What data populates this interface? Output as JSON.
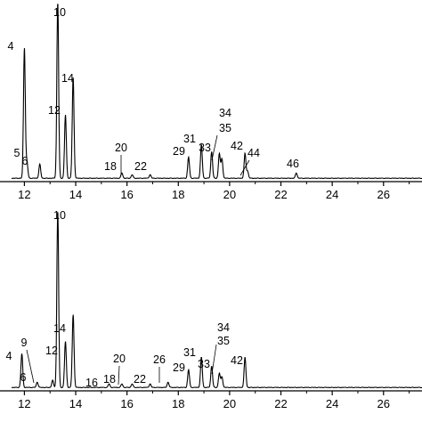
{
  "chart_data": [
    {
      "type": "line",
      "xlim": [
        11.5,
        27.5
      ],
      "xticks": [
        "12",
        "14",
        "16",
        "18",
        "20",
        "22",
        "24",
        "26"
      ],
      "tick_values": [
        12,
        14,
        16,
        18,
        20,
        22,
        24,
        26
      ],
      "ylim": [
        0,
        100
      ],
      "peaks": [
        {
          "label": "4",
          "x": 12.0,
          "height": 74
        },
        {
          "label": "5",
          "x": 12.1,
          "height": 9
        },
        {
          "label": "6",
          "x": 12.6,
          "height": 8
        },
        {
          "label": "10",
          "x": 13.3,
          "height": 100
        },
        {
          "label": "12",
          "x": 13.6,
          "height": 36
        },
        {
          "label": "14",
          "x": 13.9,
          "height": 57
        },
        {
          "label": "18",
          "x": 15.8,
          "height": 3
        },
        {
          "label": "20",
          "x": 16.2,
          "height": 2
        },
        {
          "label": "22",
          "x": 16.9,
          "height": 2
        },
        {
          "label": "29",
          "x": 18.4,
          "height": 12
        },
        {
          "label": "31",
          "x": 18.9,
          "height": 19
        },
        {
          "label": "33",
          "x": 19.3,
          "height": 15
        },
        {
          "label": "34",
          "x": 19.6,
          "height": 14
        },
        {
          "label": "35",
          "x": 19.7,
          "height": 11
        },
        {
          "label": "42",
          "x": 20.6,
          "height": 14
        },
        {
          "label": "44",
          "x": 20.7,
          "height": 4
        },
        {
          "label": "46",
          "x": 22.6,
          "height": 3
        }
      ]
    },
    {
      "type": "line",
      "xlim": [
        11.5,
        27.5
      ],
      "xticks": [
        "12",
        "14",
        "16",
        "18",
        "20",
        "22",
        "24",
        "26"
      ],
      "tick_values": [
        12,
        14,
        16,
        18,
        20,
        22,
        24,
        26
      ],
      "ylim": [
        0,
        100
      ],
      "peaks": [
        {
          "label": "4",
          "x": 11.9,
          "height": 19
        },
        {
          "label": "6",
          "x": 12.5,
          "height": 3
        },
        {
          "label": "9",
          "x": 13.1,
          "height": 4
        },
        {
          "label": "10",
          "x": 13.3,
          "height": 100
        },
        {
          "label": "12",
          "x": 13.6,
          "height": 26
        },
        {
          "label": "14",
          "x": 13.9,
          "height": 41
        },
        {
          "label": "16",
          "x": 15.3,
          "height": 2
        },
        {
          "label": "18",
          "x": 15.8,
          "height": 2
        },
        {
          "label": "20",
          "x": 16.2,
          "height": 2
        },
        {
          "label": "22",
          "x": 16.9,
          "height": 2
        },
        {
          "label": "26",
          "x": 17.6,
          "height": 3
        },
        {
          "label": "29",
          "x": 18.4,
          "height": 10
        },
        {
          "label": "31",
          "x": 18.9,
          "height": 17
        },
        {
          "label": "33",
          "x": 19.3,
          "height": 12
        },
        {
          "label": "34",
          "x": 19.6,
          "height": 8
        },
        {
          "label": "35",
          "x": 19.7,
          "height": 6
        },
        {
          "label": "42",
          "x": 20.6,
          "height": 17
        }
      ]
    }
  ]
}
